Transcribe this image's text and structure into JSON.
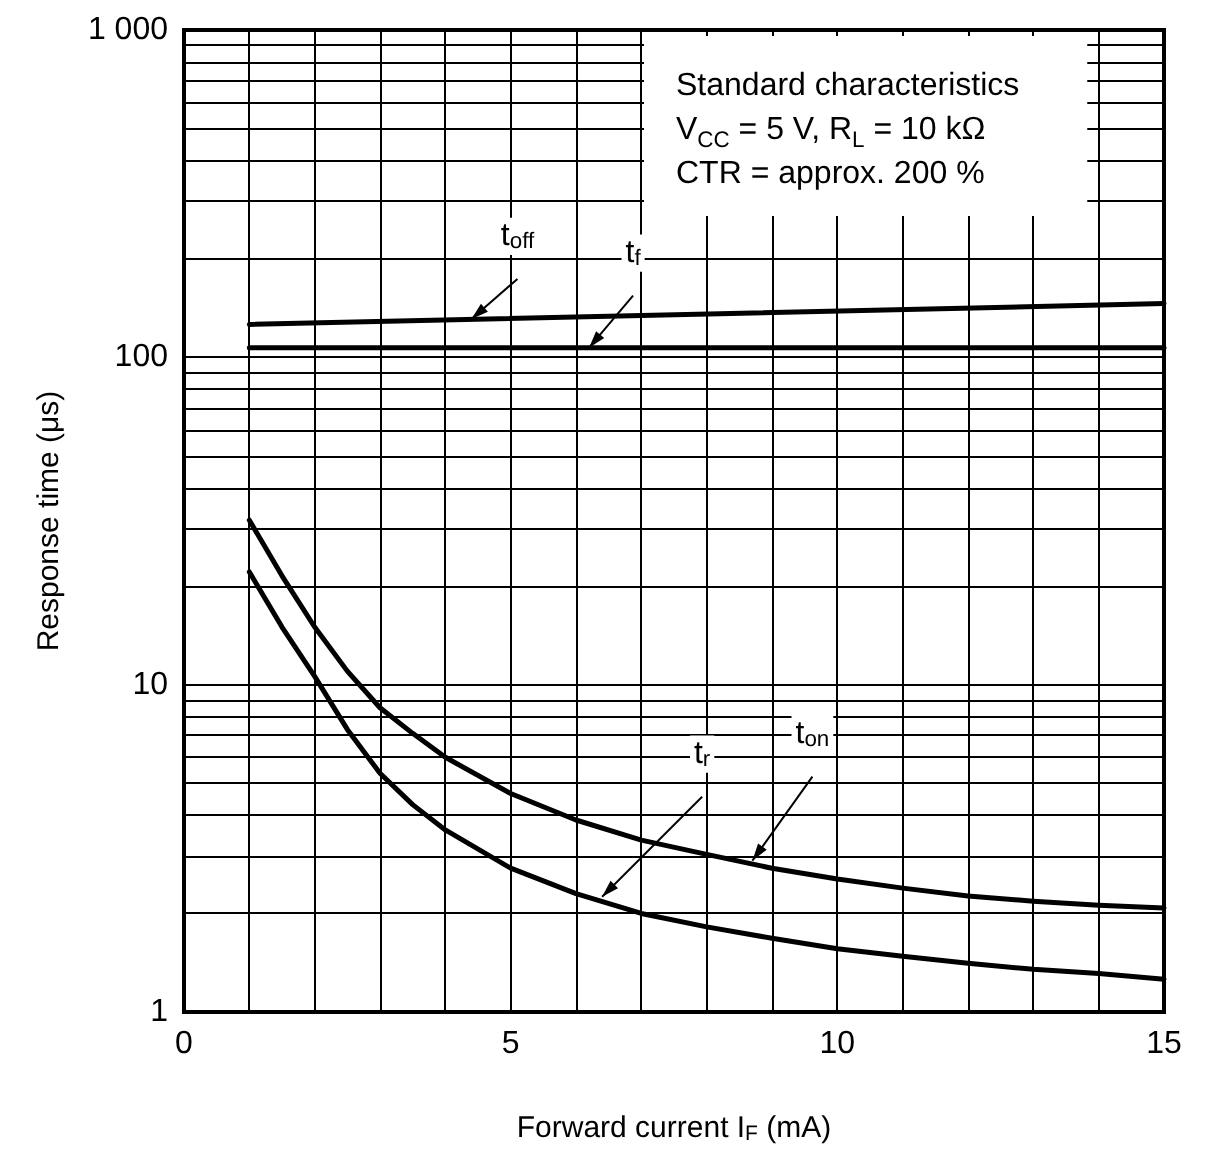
{
  "chart_data": {
    "type": "line",
    "xlabel": "Forward current I$_{F}$ (mA)",
    "ylabel": "Response time (μs)",
    "log": "y",
    "grid": true,
    "marker": "none",
    "line_style": "solid",
    "xlim": [
      0,
      15
    ],
    "xticks": [
      0,
      5,
      10,
      15
    ],
    "ylim": [
      1,
      1000
    ],
    "yticks": [
      1,
      10,
      100,
      {
        "value": 1000,
        "label": "1 000"
      }
    ],
    "series": [
      {
        "color": "#000000",
        "x": [
          1,
          15
        ],
        "values": [
          126,
          146
        ]
      },
      {
        "color": "#000000",
        "x": [
          1,
          15
        ],
        "values": [
          107,
          107
        ]
      },
      {
        "color": "#000000",
        "x": [
          1,
          1.5,
          2,
          2.5,
          3,
          3.5,
          4,
          5,
          6,
          7,
          8,
          9,
          10,
          11,
          12,
          13,
          14,
          15
        ],
        "values": [
          31.8,
          21.5,
          15.0,
          11.0,
          8.5,
          7.1,
          6.0,
          4.65,
          3.86,
          3.35,
          3.03,
          2.75,
          2.55,
          2.39,
          2.26,
          2.18,
          2.12,
          2.08
        ]
      },
      {
        "color": "#000000",
        "x": [
          1,
          1.5,
          2,
          2.5,
          3,
          3.5,
          4,
          5,
          6,
          7,
          8,
          9,
          10,
          11,
          12,
          13,
          14,
          15
        ],
        "values": [
          22.1,
          15.0,
          10.6,
          7.3,
          5.36,
          4.3,
          3.6,
          2.75,
          2.3,
          2.0,
          1.82,
          1.68,
          1.56,
          1.48,
          1.41,
          1.35,
          1.31,
          1.26
        ]
      }
    ],
    "annotations": [
      "Standard characteristics",
      "V$_{CC}$ = 5 V, R$_{L}$ = 10 kΩ",
      "CTR = approx. 200 %",
      {
        "text": "t$_{off}$",
        "x": 4.4,
        "y": 131
      },
      {
        "text": "t$_{f}$",
        "x": 6.2,
        "y": 107
      },
      {
        "text": "t$_{r}$",
        "x": 6.4,
        "y": 2.25
      },
      {
        "text": "t$_{on}$",
        "x": 8.7,
        "y": 2.9
      }
    ]
  }
}
